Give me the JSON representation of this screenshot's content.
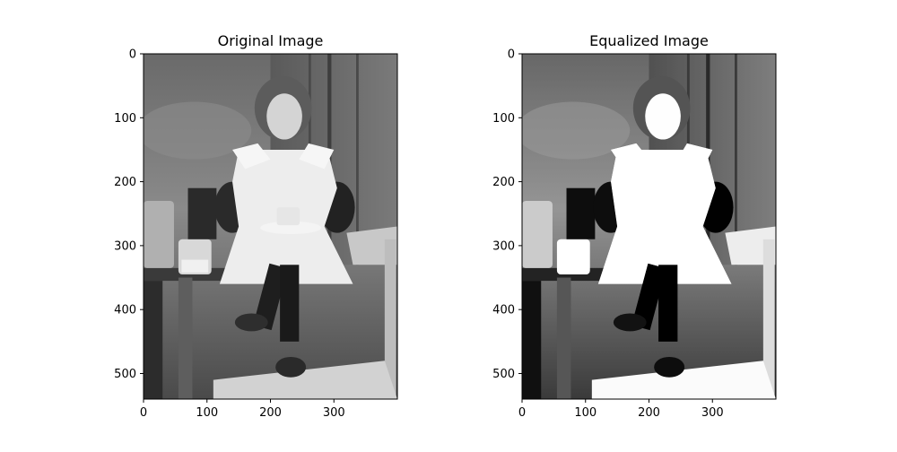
{
  "chart_data": [
    {
      "type": "image",
      "title": "Original Image",
      "image_size": [
        400,
        540
      ],
      "xlim": [
        0,
        400
      ],
      "ylim": [
        540,
        0
      ],
      "xticks": [
        0,
        100,
        200,
        300
      ],
      "yticks": [
        0,
        100,
        200,
        300,
        400,
        500
      ],
      "contrast": "original",
      "grid": false
    },
    {
      "type": "image",
      "title": "Equalized Image",
      "image_size": [
        400,
        540
      ],
      "xlim": [
        0,
        400
      ],
      "ylim": [
        540,
        0
      ],
      "xticks": [
        0,
        100,
        200,
        300
      ],
      "yticks": [
        0,
        100,
        200,
        300,
        400,
        500
      ],
      "contrast": "equalized",
      "grid": false
    }
  ]
}
